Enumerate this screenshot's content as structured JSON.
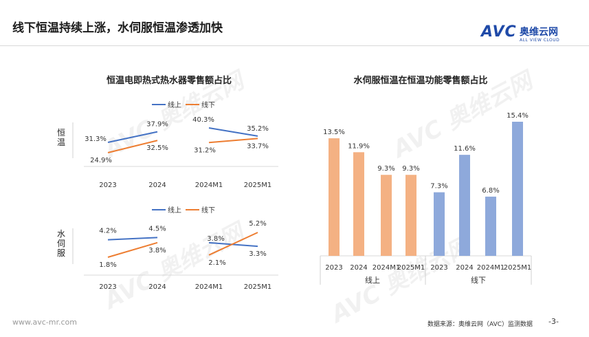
{
  "header": {
    "title": "线下恒温持续上涨，水伺服恒温渗透加快",
    "logo_mark": "AVC",
    "logo_cn": "奥维云网",
    "logo_en": "ALL VIEW CLOUD"
  },
  "watermark": {
    "mark": "AVC",
    "cn": "奥维云网"
  },
  "colors": {
    "online": "#4472C4",
    "offline": "#ED7D31",
    "bar_offline": "#F4B183",
    "bar_online": "#8EA9DB"
  },
  "chart_data": [
    {
      "type": "line",
      "title": "恒温电即热式热水器零售额占比",
      "legend": [
        "线上",
        "线下"
      ],
      "panels": [
        {
          "row_label": "恒温",
          "categories": [
            "2023",
            "2024",
            "2024M1",
            "2025M1"
          ],
          "series": [
            {
              "name": "线上",
              "values": [
                31.3,
                37.9,
                40.3,
                35.2
              ],
              "labels": [
                "31.3%",
                "37.9%",
                "40.3%",
                "35.2%"
              ]
            },
            {
              "name": "线下",
              "values": [
                24.9,
                32.5,
                31.2,
                33.7
              ],
              "labels": [
                "24.9%",
                "32.5%",
                "31.2%",
                "33.7%"
              ]
            }
          ]
        },
        {
          "row_label": "水伺服",
          "categories": [
            "2023",
            "2024",
            "2024M1",
            "2025M1"
          ],
          "series": [
            {
              "name": "线上",
              "values": [
                4.2,
                4.5,
                3.8,
                3.3
              ],
              "labels": [
                "4.2%",
                "4.5%",
                "3.8%",
                "3.3%"
              ]
            },
            {
              "name": "线下",
              "values": [
                1.8,
                3.8,
                2.1,
                5.2
              ],
              "labels": [
                "1.8%",
                "3.8%",
                "2.1%",
                "5.2%"
              ]
            }
          ]
        }
      ]
    },
    {
      "type": "bar",
      "title": "水伺服恒温在恒温功能零售额占比",
      "groups": [
        {
          "name": "线上",
          "categories": [
            "2023",
            "2024",
            "2024M1",
            "2025M1"
          ],
          "values": [
            13.5,
            11.9,
            9.3,
            9.3
          ],
          "labels": [
            "13.5%",
            "11.9%",
            "9.3%",
            "9.3%"
          ]
        },
        {
          "name": "线下",
          "categories": [
            "2023",
            "2024",
            "2024M1",
            "2025M1"
          ],
          "values": [
            7.3,
            11.6,
            6.8,
            15.4
          ],
          "labels": [
            "7.3%",
            "11.6%",
            "6.8%",
            "15.4%"
          ]
        }
      ]
    }
  ],
  "footer": {
    "website": "www.avc-mr.com",
    "source": "数据来源：奥维云网（AVC）监测数据",
    "page_number": "-3-"
  }
}
